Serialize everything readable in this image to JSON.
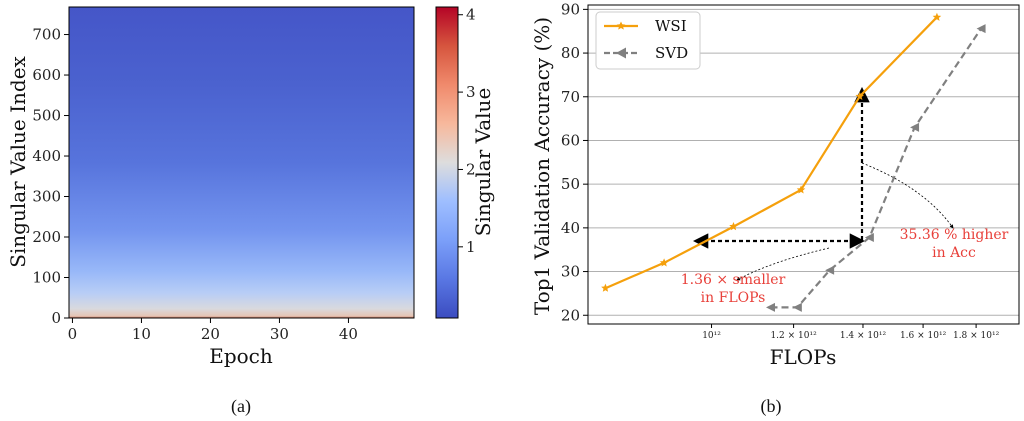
{
  "chart_data": [
    {
      "type": "heatmap",
      "caption": "(a)",
      "xlabel": "Epoch",
      "ylabel": "Singular Value Index",
      "xlim": [
        -0.5,
        49.5
      ],
      "ylim": [
        0,
        768
      ],
      "x_ticks": [
        "0",
        "10",
        "20",
        "30",
        "40"
      ],
      "y_ticks": [
        "0",
        "100",
        "200",
        "300",
        "400",
        "500",
        "600",
        "700"
      ],
      "colorbar": {
        "label": "Singular Value",
        "range": [
          0.08,
          4.1
        ],
        "ticks": [
          "1",
          "2",
          "3",
          "4"
        ],
        "colormap": "coolwarm"
      },
      "value_profile": [
        {
          "index": 0,
          "value": 4.0
        },
        {
          "index": 5,
          "value": 2.3
        },
        {
          "index": 15,
          "value": 2.0
        },
        {
          "index": 40,
          "value": 1.6
        },
        {
          "index": 100,
          "value": 1.1
        },
        {
          "index": 200,
          "value": 0.7
        },
        {
          "index": 400,
          "value": 0.35
        },
        {
          "index": 600,
          "value": 0.2
        },
        {
          "index": 768,
          "value": 0.1
        }
      ]
    },
    {
      "type": "line",
      "caption": "(b)",
      "xlabel": "FLOPs",
      "ylabel": "Top1 Validation Accuracy (%)",
      "x_scale": "log",
      "xlim": [
        760000000000.0,
        1980000000000.0
      ],
      "ylim": [
        18,
        91
      ],
      "grid": "y",
      "legend_position": "top-left",
      "x_ticks": [
        "10¹²",
        "1.2 × 10¹²",
        "1.4 × 10¹²",
        "1.6 × 10¹²",
        "1.8 × 10¹²"
      ],
      "y_ticks": [
        "20",
        "30",
        "40",
        "50",
        "60",
        "70",
        "80",
        "90"
      ],
      "series": [
        {
          "name": "WSI",
          "color": "#f5a00c",
          "style": "solid",
          "marker": "star",
          "x": [
            790000000000.0,
            900000000000.0,
            1050000000000.0,
            1220000000000.0,
            1390000000000.0,
            1650000000000.0
          ],
          "y": [
            26.2,
            32.0,
            40.3,
            48.7,
            70.1,
            88.2
          ]
        },
        {
          "name": "SVD",
          "color": "#808080",
          "style": "dashed",
          "marker": "triangle-left",
          "x": [
            1140000000000.0,
            1210000000000.0,
            1300000000000.0,
            1420000000000.0,
            1570000000000.0,
            1820000000000.0
          ],
          "y": [
            21.8,
            21.8,
            30.3,
            37.8,
            63.0,
            85.6
          ]
        }
      ],
      "annotations": [
        {
          "text_lines": [
            "1.36 × smaller",
            "in FLOPs"
          ],
          "color": "#e8403a"
        },
        {
          "text_lines": [
            "35.36 % higher",
            "in Acc"
          ],
          "color": "#e8403a"
        }
      ]
    }
  ]
}
